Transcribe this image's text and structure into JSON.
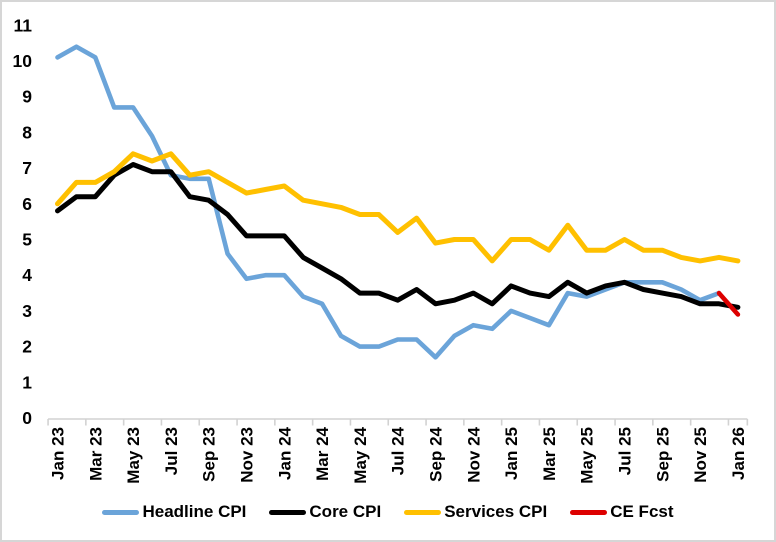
{
  "chart_data": {
    "type": "line",
    "title": "",
    "xlabel": "",
    "ylabel": "",
    "ylim": [
      0,
      11
    ],
    "grid": false,
    "legend_position": "bottom",
    "axis_color": "#d2d2d2",
    "categories": [
      "Jan 23",
      "Feb 23",
      "Mar 23",
      "Apr 23",
      "May 23",
      "Jun 23",
      "Jul 23",
      "Aug 23",
      "Sep 23",
      "Oct 23",
      "Nov 23",
      "Dec 23",
      "Jan 24",
      "Feb 24",
      "Mar 24",
      "Apr 24",
      "May 24",
      "Jun 24",
      "Jul 24",
      "Aug 24",
      "Sep 24",
      "Oct 24",
      "Nov 24",
      "Dec 24",
      "Jan 25",
      "Feb 25",
      "Mar 25",
      "Apr 25",
      "May 25",
      "Jun 25",
      "Jul 25",
      "Aug 25",
      "Sep 25",
      "Oct 25",
      "Nov 25",
      "Dec 25",
      "Jan 26"
    ],
    "x_tick_labels": [
      "Jan 23",
      "Mar 23",
      "May 23",
      "Jul 23",
      "Sep 23",
      "Nov 23",
      "Jan 24",
      "Mar 24",
      "May 24",
      "Jul 24",
      "Sep 24",
      "Nov 24",
      "Jan 25",
      "Mar 25",
      "May 25",
      "Jul 25",
      "Sep 25",
      "Nov 25",
      "Jan 26"
    ],
    "y_tick_labels": [
      "0",
      "1",
      "2",
      "3",
      "4",
      "5",
      "6",
      "7",
      "8",
      "9",
      "10",
      "11"
    ],
    "series": [
      {
        "name": "Headline CPI",
        "color": "#6ba4d9",
        "stroke_width": 4.6,
        "start_index": 0,
        "values": [
          10.1,
          10.4,
          10.1,
          8.7,
          8.7,
          7.9,
          6.8,
          6.7,
          6.7,
          4.6,
          3.9,
          4.0,
          4.0,
          3.4,
          3.2,
          2.3,
          2.0,
          2.0,
          2.2,
          2.2,
          1.7,
          2.3,
          2.6,
          2.5,
          3.0,
          2.8,
          2.6,
          3.5,
          3.4,
          3.6,
          3.8,
          3.8,
          3.8,
          3.6,
          3.3,
          3.5
        ]
      },
      {
        "name": "Core CPI",
        "color": "#000000",
        "stroke_width": 5,
        "start_index": 0,
        "values": [
          5.8,
          6.2,
          6.2,
          6.8,
          7.1,
          6.9,
          6.9,
          6.2,
          6.1,
          5.7,
          5.1,
          5.1,
          5.1,
          4.5,
          4.2,
          3.9,
          3.5,
          3.5,
          3.3,
          3.6,
          3.2,
          3.3,
          3.5,
          3.2,
          3.7,
          3.5,
          3.4,
          3.8,
          3.5,
          3.7,
          3.8,
          3.6,
          3.5,
          3.4,
          3.2,
          3.2,
          3.1
        ]
      },
      {
        "name": "Services CPI",
        "color": "#ffc000",
        "stroke_width": 5,
        "start_index": 0,
        "values": [
          6.0,
          6.6,
          6.6,
          6.9,
          7.4,
          7.2,
          7.4,
          6.8,
          6.9,
          6.6,
          6.3,
          6.4,
          6.5,
          6.1,
          6.0,
          5.9,
          5.7,
          5.7,
          5.2,
          5.6,
          4.9,
          5.0,
          5.0,
          4.4,
          5.0,
          5.0,
          4.7,
          5.4,
          4.7,
          4.7,
          5.0,
          4.7,
          4.7,
          4.5,
          4.4,
          4.5,
          4.4
        ]
      },
      {
        "name": "CE Fcst",
        "color": "#dd0000",
        "stroke_width": 4.6,
        "start_index": 35,
        "values": [
          3.5,
          2.9
        ]
      }
    ]
  }
}
